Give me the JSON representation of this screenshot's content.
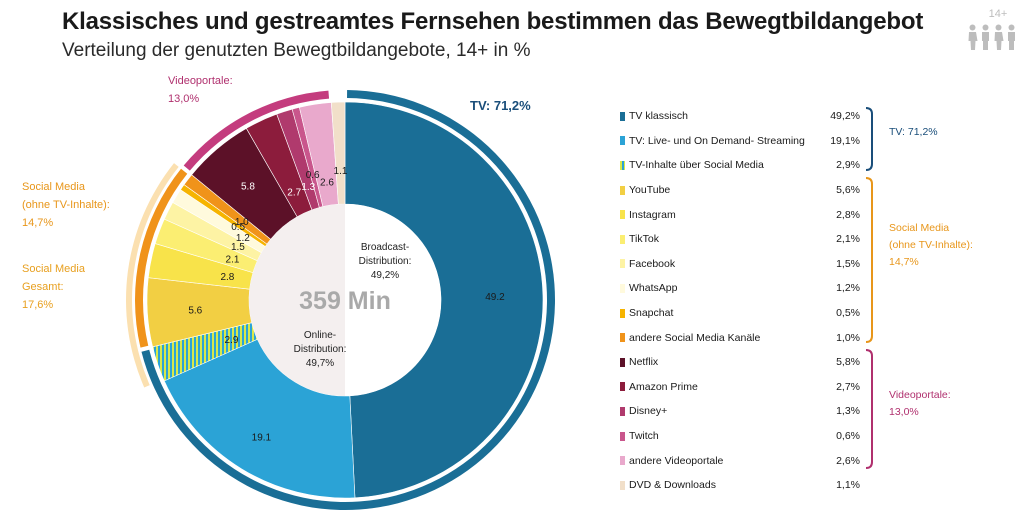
{
  "header": {
    "title": "Klassisches und gestreamtes Fernsehen bestimmen das Bewegtbildangebot",
    "subtitle": "Verteilung der genutzten Bewegtbildangebote, 14+ in %",
    "badge": "14+"
  },
  "chart_data": {
    "type": "pie",
    "center_label": "359 Min",
    "inner": [
      {
        "label": "Broadcast-Distribution:",
        "value": "49,2%",
        "pct": 49.2,
        "color": "#ffffff"
      },
      {
        "label": "Online-Distribution:",
        "value": "49,7%",
        "pct": 49.7,
        "color": "#f4efef"
      }
    ],
    "series": [
      {
        "name": "TV klassisch",
        "value": 49.2,
        "display": "49,2%",
        "label": "49.2",
        "color": "#1a6e96"
      },
      {
        "name": "TV: Live- und On Demand- Streaming",
        "value": 19.1,
        "display": "19,1%",
        "label": "19.1",
        "color": "#2ba3d6"
      },
      {
        "name": "TV-Inhalte über Social Media",
        "value": 2.9,
        "display": "2,9%",
        "label": "2.9",
        "color": "#6aaa3a",
        "pattern": "stripes"
      },
      {
        "name": "YouTube",
        "value": 5.6,
        "display": "5,6%",
        "label": "5.6",
        "color": "#f2cf43"
      },
      {
        "name": "Instagram",
        "value": 2.8,
        "display": "2,8%",
        "label": "2.8",
        "color": "#f8e34a"
      },
      {
        "name": "TikTok",
        "value": 2.1,
        "display": "2,1%",
        "label": "2.1",
        "color": "#fbee72"
      },
      {
        "name": "Facebook",
        "value": 1.5,
        "display": "1,5%",
        "label": "1.5",
        "color": "#fdf3a4"
      },
      {
        "name": "WhatsApp",
        "value": 1.2,
        "display": "1,2%",
        "label": "1.2",
        "color": "#fffadd"
      },
      {
        "name": "Snapchat",
        "value": 0.5,
        "display": "0,5%",
        "label": "0.5",
        "color": "#f6b400"
      },
      {
        "name": "andere Social Media Kanäle",
        "value": 1.0,
        "display": "1,0%",
        "label": "1.0",
        "color": "#f0931a"
      },
      {
        "name": "Netflix",
        "value": 5.8,
        "display": "5,8%",
        "label": "5.8",
        "color": "#5c1128"
      },
      {
        "name": "Amazon Prime",
        "value": 2.7,
        "display": "2,7%",
        "label": "2.7",
        "color": "#8c1c3c"
      },
      {
        "name": "Disney+",
        "value": 1.3,
        "display": "1,3%",
        "label": "1.3",
        "color": "#b03a6d"
      },
      {
        "name": "Twitch",
        "value": 0.6,
        "display": "0,6%",
        "label": "0.6",
        "color": "#c9568c"
      },
      {
        "name": "andere Videoportale",
        "value": 2.6,
        "display": "2,6%",
        "label": "2.6",
        "color": "#e9a9cc"
      },
      {
        "name": "DVD & Downloads",
        "value": 1.1,
        "display": "1,1%",
        "label": "1.1",
        "color": "#f1dfc9"
      }
    ],
    "groups": [
      {
        "key": "tv",
        "label": "TV: 71,2%",
        "ring_label": "TV: 71,2%",
        "color": "#1a6e96",
        "from": 0,
        "to": 2
      },
      {
        "key": "social",
        "label": "Social Media\n(ohne TV-Inhalte):\n14,7%",
        "ring_label": "Social Media\n(ohne TV-Inhalte):\n14,7%",
        "color": "#f0931a",
        "from": 3,
        "to": 9
      },
      {
        "key": "social_total",
        "label": "Social Media\nGesamt:\n17,6%",
        "color": "#fbe0b0"
      },
      {
        "key": "video",
        "label": "Videoportale:\n13,0%",
        "ring_label": "Videoportale:\n13,0%",
        "color": "#c43c7e",
        "from": 10,
        "to": 14
      }
    ]
  }
}
